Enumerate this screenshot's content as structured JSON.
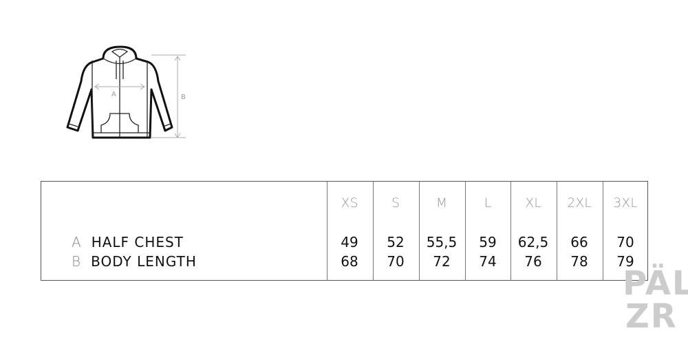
{
  "diagram": {
    "label_a": "A",
    "label_b": "B"
  },
  "table": {
    "sizes": [
      "XS",
      "S",
      "M",
      "L",
      "XL",
      "2XL",
      "3XL"
    ],
    "rows": [
      {
        "key": "A",
        "label": "HALF CHEST",
        "values": [
          "49",
          "52",
          "55,5",
          "59",
          "62,5",
          "66",
          "70"
        ]
      },
      {
        "key": "B",
        "label": "BODY LENGTH",
        "values": [
          "68",
          "70",
          "72",
          "74",
          "76",
          "78",
          "79"
        ]
      }
    ]
  },
  "watermark": {
    "line1": "PÄL",
    "line2": "ZR"
  }
}
